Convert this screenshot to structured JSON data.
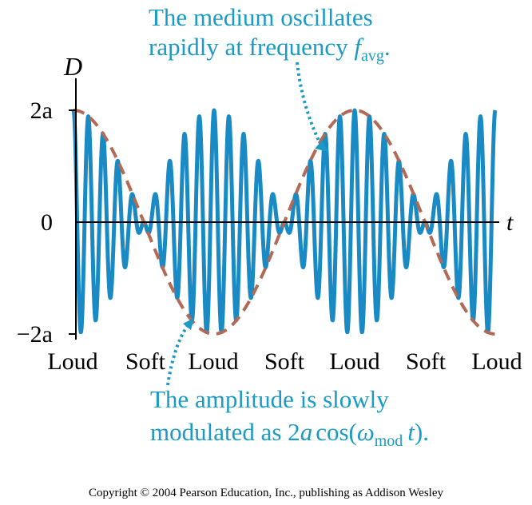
{
  "axes": {
    "y_label": "D",
    "x_label": "t",
    "y_ticks": [
      "2a",
      "0",
      "−2a"
    ]
  },
  "beat_labels": [
    "Loud",
    "Soft",
    "Loud",
    "Soft",
    "Loud",
    "Soft",
    "Loud"
  ],
  "annotations": {
    "top_line1": "The medium oscillates",
    "top_line2_prefix": "rapidly at frequency ",
    "top_f": "f",
    "top_sub": "avg",
    "top_end": ".",
    "bottom_line1": "The amplitude is slowly",
    "bottom_line2_prefix": "modulated as 2",
    "bottom_a": "a",
    "bottom_cos": "cos(",
    "bottom_omega": "ω",
    "bottom_sub": "mod",
    "bottom_t": "t",
    "bottom_end": ")."
  },
  "copyright": "Copyright © 2004 Pearson Education, Inc., publishing as Addison Wesley",
  "colors": {
    "wave": "#1a8ac4",
    "envelope": "#b06a55",
    "annotation": "#1a9ac4",
    "axis": "#000000"
  },
  "signal": {
    "amplitude_label": "2a",
    "fast_cycles_per_beat_period": 9.5,
    "envelope": "2a cos(ωmod t)"
  }
}
